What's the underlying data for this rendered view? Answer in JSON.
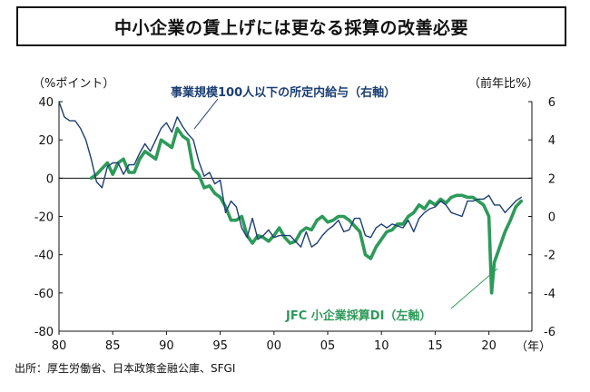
{
  "chart_data": {
    "type": "line",
    "title": "中小企業の賃上げには更なる採算の改善必要",
    "left_axis_label": "（%ポイント）",
    "right_axis_label": "（前年比%）",
    "x_unit_label": "（年）",
    "x_ticks": [
      "80",
      "85",
      "90",
      "95",
      "00",
      "05",
      "10",
      "15",
      "20"
    ],
    "x_tick_values": [
      1980,
      1985,
      1990,
      1995,
      2000,
      2005,
      2010,
      2015,
      2020
    ],
    "left_ticks": [
      "40",
      "20",
      "0",
      "-20",
      "-40",
      "-60",
      "-80"
    ],
    "left_tick_values": [
      40,
      20,
      0,
      -20,
      -40,
      -60,
      -80
    ],
    "right_ticks": [
      "6",
      "4",
      "2",
      "0",
      "-2",
      "-4",
      "-6"
    ],
    "right_tick_values": [
      6,
      4,
      2,
      0,
      -2,
      -4,
      -6
    ],
    "xlim": [
      1980,
      2024
    ],
    "left_ylim": [
      -80,
      40
    ],
    "right_ylim": [
      -6,
      6
    ],
    "source": "出所：厚生労働省、日本政策金融公庫、SFGI",
    "colors": {
      "wage": "#1c3f73",
      "jfc": "#2d9a59"
    },
    "series": [
      {
        "name": "事業規模100人以下の所定内給与（右軸）",
        "axis": "right",
        "x": [
          1980.0,
          1980.5,
          1981.0,
          1981.5,
          1982.0,
          1982.5,
          1983.0,
          1983.5,
          1984.0,
          1984.5,
          1985.0,
          1985.5,
          1986.0,
          1986.5,
          1987.0,
          1987.5,
          1988.0,
          1988.5,
          1989.0,
          1989.5,
          1990.0,
          1990.5,
          1991.0,
          1991.5,
          1992.0,
          1992.5,
          1993.0,
          1993.5,
          1994.0,
          1994.5,
          1995.0,
          1995.5,
          1996.0,
          1996.5,
          1997.0,
          1997.5,
          1998.0,
          1998.5,
          1999.0,
          1999.5,
          2000.0,
          2000.5,
          2001.0,
          2001.5,
          2002.0,
          2002.5,
          2003.0,
          2003.5,
          2004.0,
          2004.5,
          2005.0,
          2005.5,
          2006.0,
          2006.5,
          2007.0,
          2007.5,
          2008.0,
          2008.5,
          2009.0,
          2009.5,
          2010.0,
          2010.5,
          2011.0,
          2011.5,
          2012.0,
          2012.5,
          2013.0,
          2013.5,
          2014.0,
          2014.5,
          2015.0,
          2015.5,
          2016.0,
          2016.5,
          2017.0,
          2017.5,
          2018.0,
          2018.5,
          2019.0,
          2019.5,
          2020.0,
          2020.5,
          2021.0,
          2021.5,
          2022.0,
          2022.5,
          2023.0
        ],
        "values": [
          6.0,
          5.2,
          5.0,
          5.0,
          4.6,
          4.0,
          3.0,
          1.8,
          1.5,
          2.6,
          2.8,
          2.8,
          2.2,
          2.7,
          2.7,
          3.3,
          3.8,
          3.4,
          4.0,
          4.6,
          4.9,
          4.4,
          5.2,
          4.7,
          4.3,
          4.0,
          2.9,
          2.1,
          2.3,
          1.7,
          1.9,
          0.2,
          0.8,
          0.5,
          -0.6,
          -1.1,
          -0.1,
          -1.2,
          -1.0,
          -0.7,
          -1.1,
          -1.0,
          -1.0,
          -1.0,
          -1.3,
          -1.6,
          -0.8,
          -1.6,
          -1.4,
          -1.0,
          -0.7,
          -0.5,
          -0.2,
          -0.8,
          -0.7,
          -0.1,
          -0.1,
          -1.0,
          -1.1,
          -0.6,
          -0.4,
          -0.6,
          -0.4,
          -0.5,
          -0.6,
          -0.2,
          -0.8,
          -0.1,
          0.2,
          0.4,
          0.5,
          0.8,
          0.6,
          0.2,
          0.1,
          0.0,
          0.8,
          0.8,
          0.9,
          0.9,
          1.1,
          0.6,
          0.6,
          0.2,
          0.5,
          0.8,
          1.0
        ]
      },
      {
        "name": "JFC 小企業採算DI（左軸）",
        "axis": "left",
        "x": [
          1983.0,
          1983.5,
          1984.0,
          1984.5,
          1985.0,
          1985.5,
          1986.0,
          1986.5,
          1987.0,
          1987.5,
          1988.0,
          1988.5,
          1989.0,
          1989.5,
          1990.0,
          1990.5,
          1991.0,
          1991.5,
          1992.0,
          1992.5,
          1993.0,
          1993.5,
          1994.0,
          1994.5,
          1995.0,
          1995.5,
          1996.0,
          1996.5,
          1997.0,
          1997.5,
          1998.0,
          1998.5,
          1999.0,
          1999.5,
          2000.0,
          2000.5,
          2001.0,
          2001.5,
          2002.0,
          2002.5,
          2003.0,
          2003.5,
          2004.0,
          2004.5,
          2005.0,
          2005.5,
          2006.0,
          2006.5,
          2007.0,
          2007.5,
          2008.0,
          2008.5,
          2009.0,
          2009.5,
          2010.0,
          2010.5,
          2011.0,
          2011.5,
          2012.0,
          2012.5,
          2013.0,
          2013.5,
          2014.0,
          2014.5,
          2015.0,
          2015.5,
          2016.0,
          2016.5,
          2017.0,
          2017.5,
          2018.0,
          2018.5,
          2019.0,
          2019.5,
          2020.0,
          2020.25,
          2020.5,
          2021.0,
          2021.5,
          2022.0,
          2022.5,
          2023.0
        ],
        "values": [
          0.0,
          2.0,
          5.0,
          8.0,
          2.0,
          8.0,
          10.0,
          3.0,
          3.0,
          10.0,
          14.0,
          12.0,
          10.0,
          20.0,
          18.0,
          16.0,
          26.0,
          22.0,
          20.0,
          5.0,
          2.0,
          -5.0,
          -4.0,
          -8.0,
          -10.0,
          -15.0,
          -22.0,
          -22.0,
          -20.0,
          -30.0,
          -34.0,
          -30.0,
          -31.0,
          -33.0,
          -30.0,
          -26.0,
          -31.0,
          -34.0,
          -33.0,
          -28.0,
          -26.0,
          -27.0,
          -22.0,
          -20.0,
          -23.0,
          -22.0,
          -20.0,
          -20.0,
          -22.0,
          -25.0,
          -28.0,
          -40.0,
          -42.0,
          -36.0,
          -32.0,
          -28.0,
          -27.0,
          -24.0,
          -24.0,
          -20.0,
          -18.0,
          -14.0,
          -16.0,
          -12.0,
          -14.0,
          -11.0,
          -13.0,
          -10.0,
          -9.0,
          -9.0,
          -10.0,
          -10.0,
          -12.0,
          -14.0,
          -20.0,
          -60.0,
          -44.0,
          -36.0,
          -28.0,
          -22.0,
          -15.0,
          -12.0
        ]
      }
    ],
    "annotations": {
      "wage_label": "事業規模100人以下の所定内給与（右軸）",
      "jfc_label": "JFC 小企業採算DI（左軸）"
    }
  }
}
